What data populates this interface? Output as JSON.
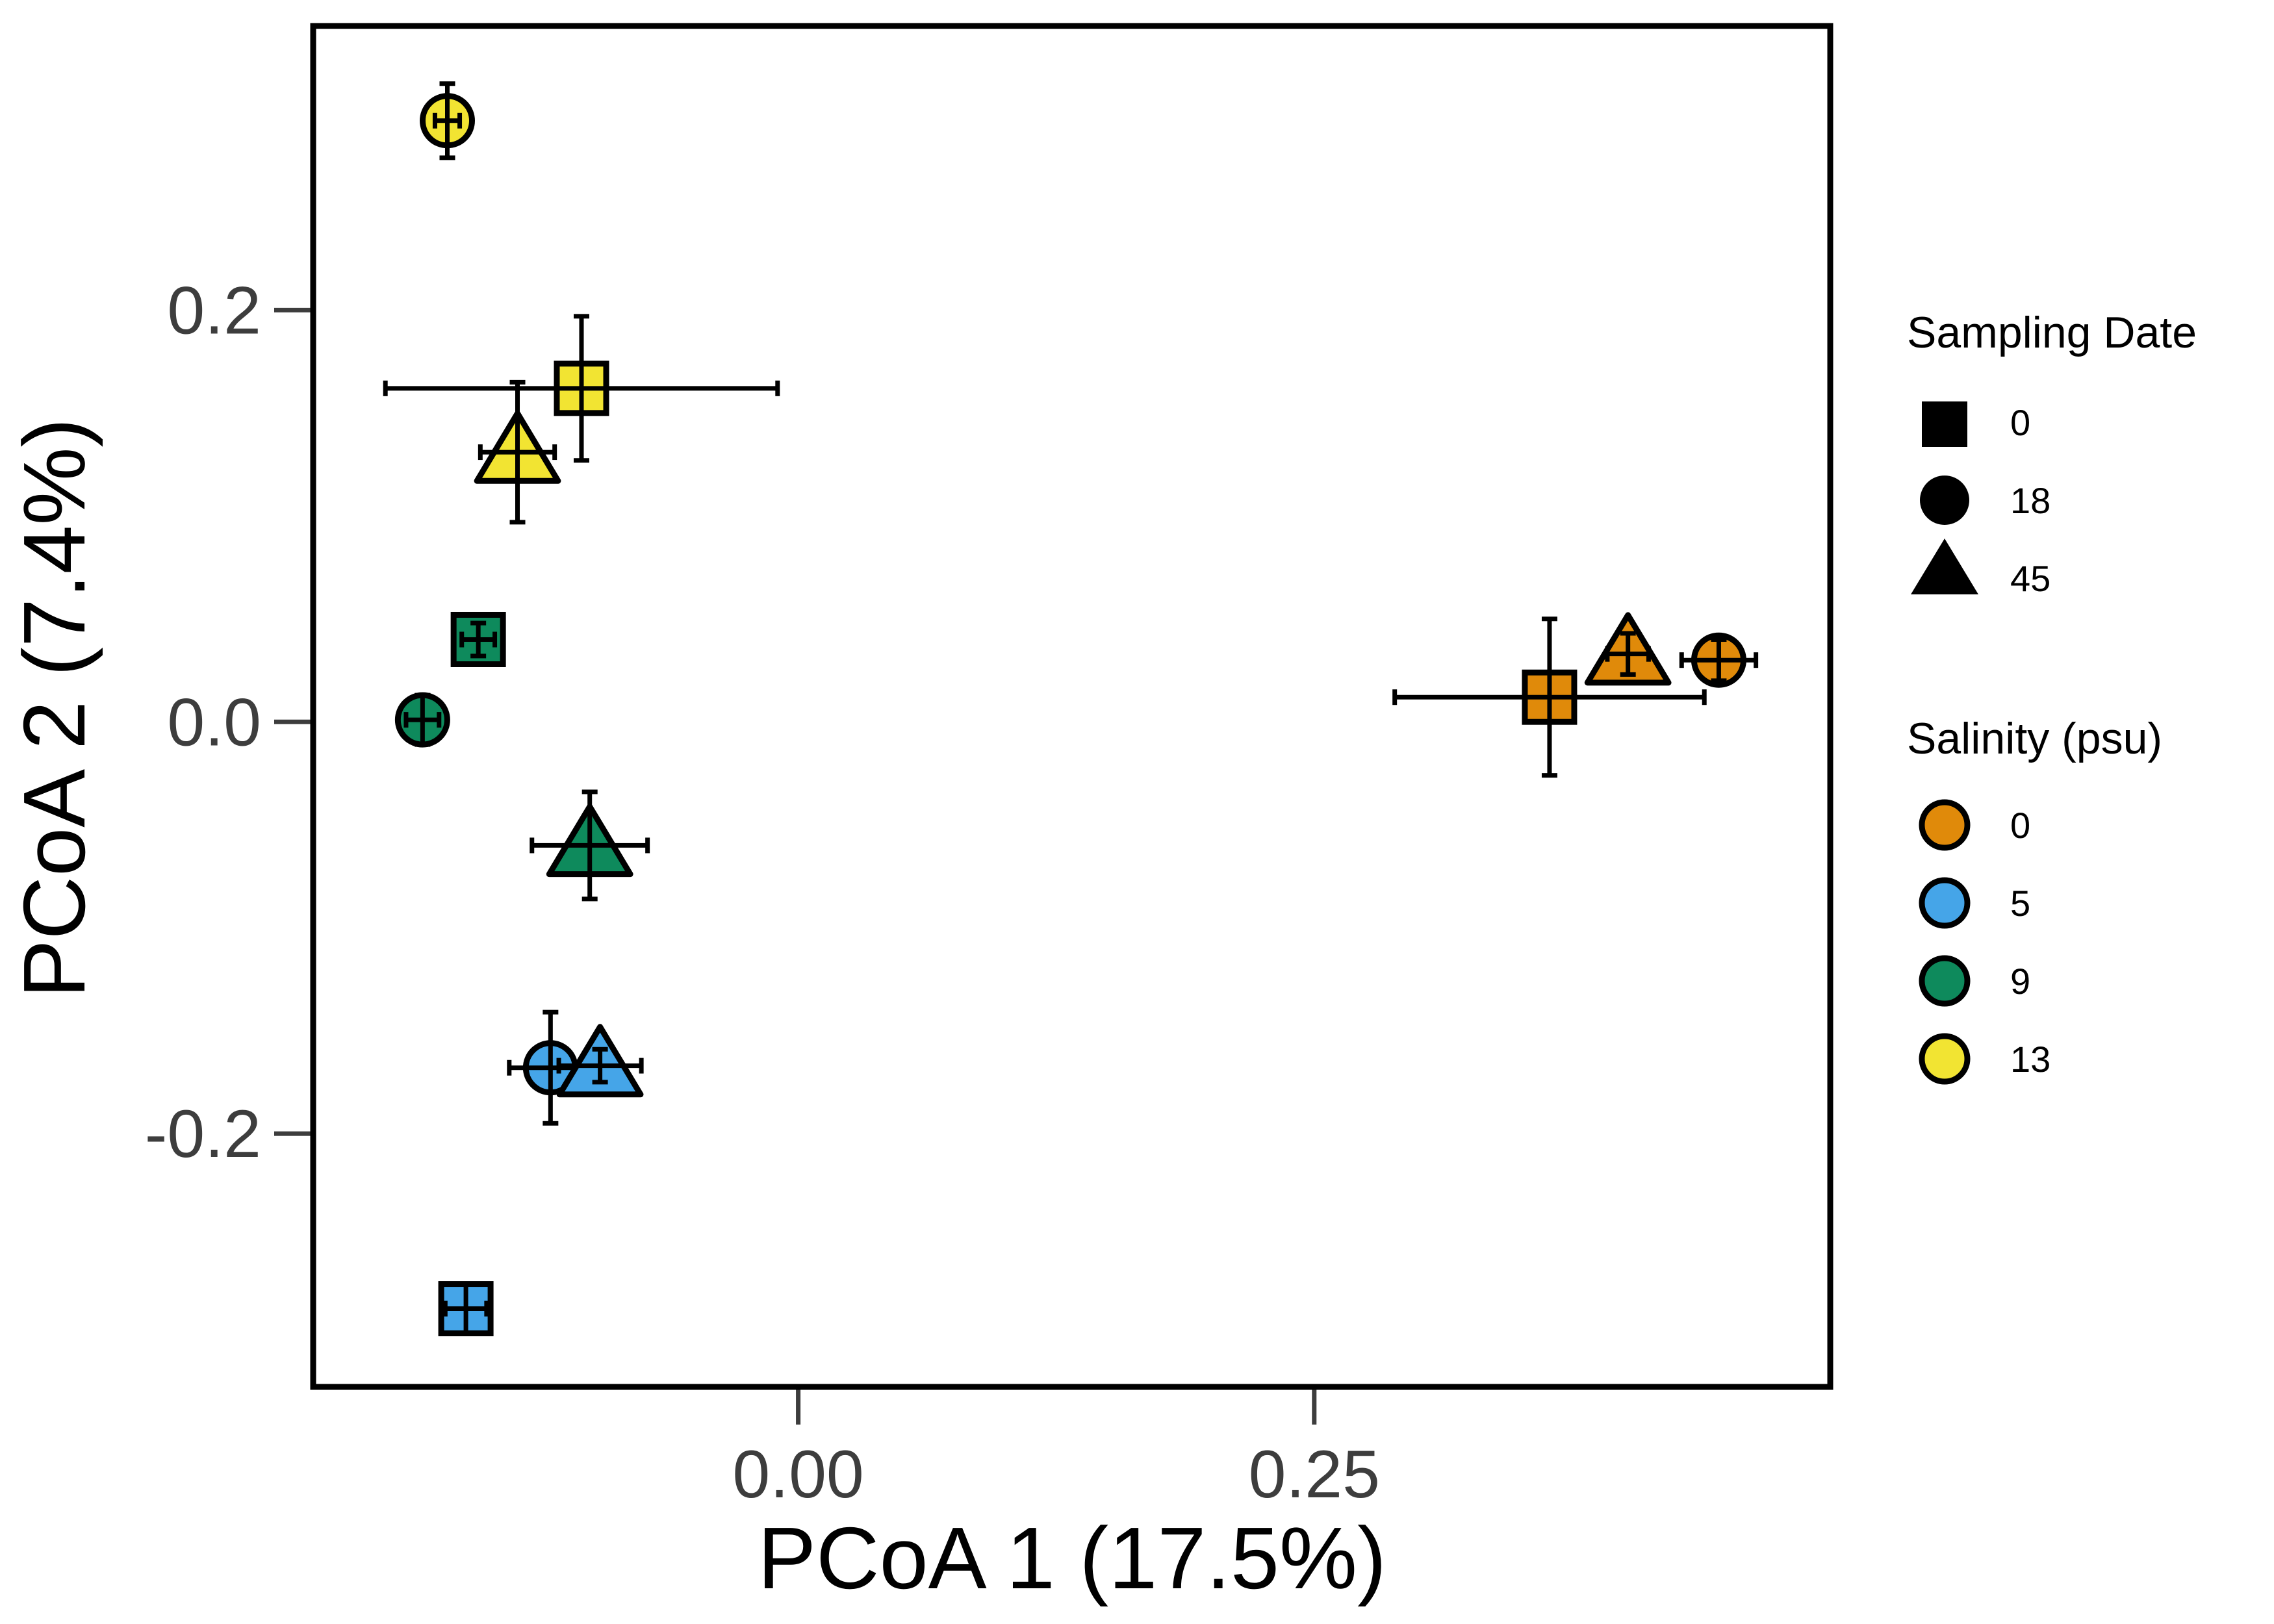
{
  "chart_data": {
    "type": "scatter",
    "xlabel": "PCoA 1 (17.5%)",
    "ylabel": "PCoA 2 (7.4%)",
    "xlim": [
      -0.235,
      0.5
    ],
    "ylim": [
      -0.323,
      0.338
    ],
    "xticks": [
      0.0,
      0.25
    ],
    "xtick_labels": [
      "0.00",
      "0.25"
    ],
    "yticks": [
      -0.2,
      0.0,
      0.2
    ],
    "ytick_labels": [
      "-0.2",
      "0.0",
      "0.2"
    ],
    "grid": false,
    "legend_position": "right",
    "legends": [
      {
        "title": "Sampling Date",
        "entries": [
          {
            "label": "0",
            "shape": "square"
          },
          {
            "label": "18",
            "shape": "circle"
          },
          {
            "label": "45",
            "shape": "triangle"
          }
        ]
      },
      {
        "title": "Salinity (psu)",
        "entries": [
          {
            "label": "0",
            "color": "#E08A0A"
          },
          {
            "label": "5",
            "color": "#45A5E8"
          },
          {
            "label": "9",
            "color": "#0E8A5C"
          },
          {
            "label": "13",
            "color": "#F2E432"
          }
        ]
      }
    ],
    "colors": {
      "0": "#E08A0A",
      "5": "#45A5E8",
      "9": "#0E8A5C",
      "13": "#F2E432"
    },
    "points": [
      {
        "salinity": "13",
        "date": "18",
        "shape": "circle",
        "x": -0.17,
        "y": 0.292,
        "xerr": 0.006,
        "yerr": 0.018
      },
      {
        "salinity": "13",
        "date": "0",
        "shape": "square",
        "x": -0.105,
        "y": 0.162,
        "xerr": 0.095,
        "yerr": 0.035
      },
      {
        "salinity": "13",
        "date": "45",
        "shape": "triangle",
        "x": -0.136,
        "y": 0.131,
        "xerr": 0.018,
        "yerr": 0.034
      },
      {
        "salinity": "9",
        "date": "0",
        "shape": "square",
        "x": -0.155,
        "y": 0.04,
        "xerr": 0.008,
        "yerr": 0.008
      },
      {
        "salinity": "9",
        "date": "18",
        "shape": "circle",
        "x": -0.182,
        "y": 0.001,
        "xerr": 0.008,
        "yerr": 0.012
      },
      {
        "salinity": "9",
        "date": "45",
        "shape": "triangle",
        "x": -0.101,
        "y": -0.06,
        "xerr": 0.028,
        "yerr": 0.026
      },
      {
        "salinity": "5",
        "date": "18",
        "shape": "circle",
        "x": -0.12,
        "y": -0.168,
        "xerr": 0.02,
        "yerr": 0.027
      },
      {
        "salinity": "5",
        "date": "45",
        "shape": "triangle",
        "x": -0.096,
        "y": -0.167,
        "xerr": 0.02,
        "yerr": 0.008
      },
      {
        "salinity": "5",
        "date": "0",
        "shape": "square",
        "x": -0.161,
        "y": -0.285,
        "xerr": 0.01,
        "yerr": 0.012
      },
      {
        "salinity": "0",
        "date": "0",
        "shape": "square",
        "x": 0.364,
        "y": 0.012,
        "xerr": 0.075,
        "yerr": 0.038
      },
      {
        "salinity": "0",
        "date": "45",
        "shape": "triangle",
        "x": 0.402,
        "y": 0.033,
        "xerr": 0.01,
        "yerr": 0.01
      },
      {
        "salinity": "0",
        "date": "18",
        "shape": "circle",
        "x": 0.446,
        "y": 0.03,
        "xerr": 0.018,
        "yerr": 0.01
      }
    ]
  }
}
